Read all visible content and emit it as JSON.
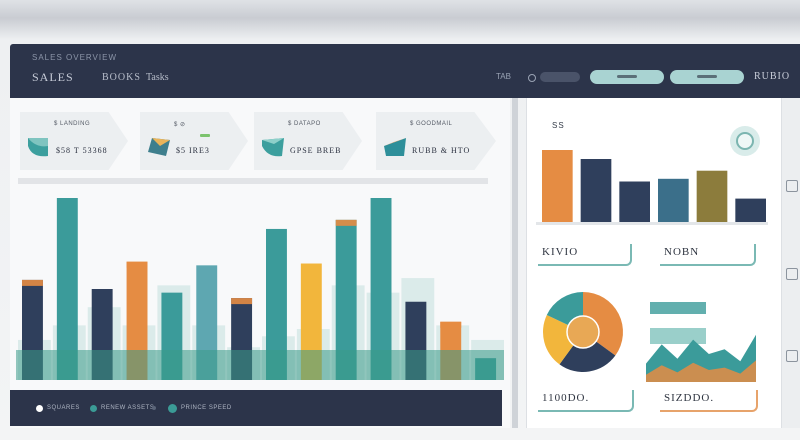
{
  "header": {
    "subtitle": "SALES OVERVIEW",
    "brand": "SALES",
    "menu_1": "BOOKS",
    "menu_2": "Tasks",
    "nav_1": "TAB",
    "user": "RUBIO"
  },
  "kpis": [
    {
      "label": "$ LANDING",
      "value": "$58 T 53368",
      "color": "#3c9f9e"
    },
    {
      "label": "$ ⊘",
      "value": "$5 IRE3",
      "color": "#3e7f8d"
    },
    {
      "label": "$ DATAPO",
      "value": "GPSE BREB",
      "color": "#3c9f9e"
    },
    {
      "label": "$ GOODMAIL",
      "value": "RUBB & HTO",
      "color": "#2e8f9a"
    }
  ],
  "footer": {
    "items": [
      {
        "label": "SQUARES",
        "color": "#ffffff"
      },
      {
        "label": "RENEW ASSETS",
        "color": "#3b9b96"
      },
      {
        "label": "",
        "color": "#3b9b96"
      },
      {
        "label": "PRINCE SPEED",
        "color": "#3b9b96"
      }
    ]
  },
  "right": {
    "title": "SS",
    "field_1": "KIVIO",
    "field_2": "NOBN",
    "field_3": "1100DO.",
    "field_4": "SIZDDO."
  },
  "colors": {
    "navy": "#2c344a",
    "teal": "#3b9b9a",
    "orange": "#e58c43",
    "yellow": "#f2b63c",
    "olive": "#8c7c3c"
  },
  "chart_data": [
    {
      "type": "bar",
      "series": [
        {
          "values": [
            55,
            100,
            50,
            65,
            48,
            63,
            45,
            83,
            64,
            88,
            100,
            43,
            32,
            12
          ]
        },
        {
          "values": [
            22,
            30,
            40,
            30,
            52,
            30,
            18,
            24,
            28,
            52,
            48,
            56,
            30,
            22
          ]
        }
      ]
    },
    {
      "type": "bar",
      "values": [
        80,
        70,
        45,
        48,
        57,
        26
      ]
    },
    {
      "type": "pie",
      "values": [
        35,
        25,
        22,
        18
      ]
    },
    {
      "type": "area",
      "values": [
        6,
        14,
        8,
        16,
        10,
        12,
        7,
        18
      ]
    }
  ]
}
